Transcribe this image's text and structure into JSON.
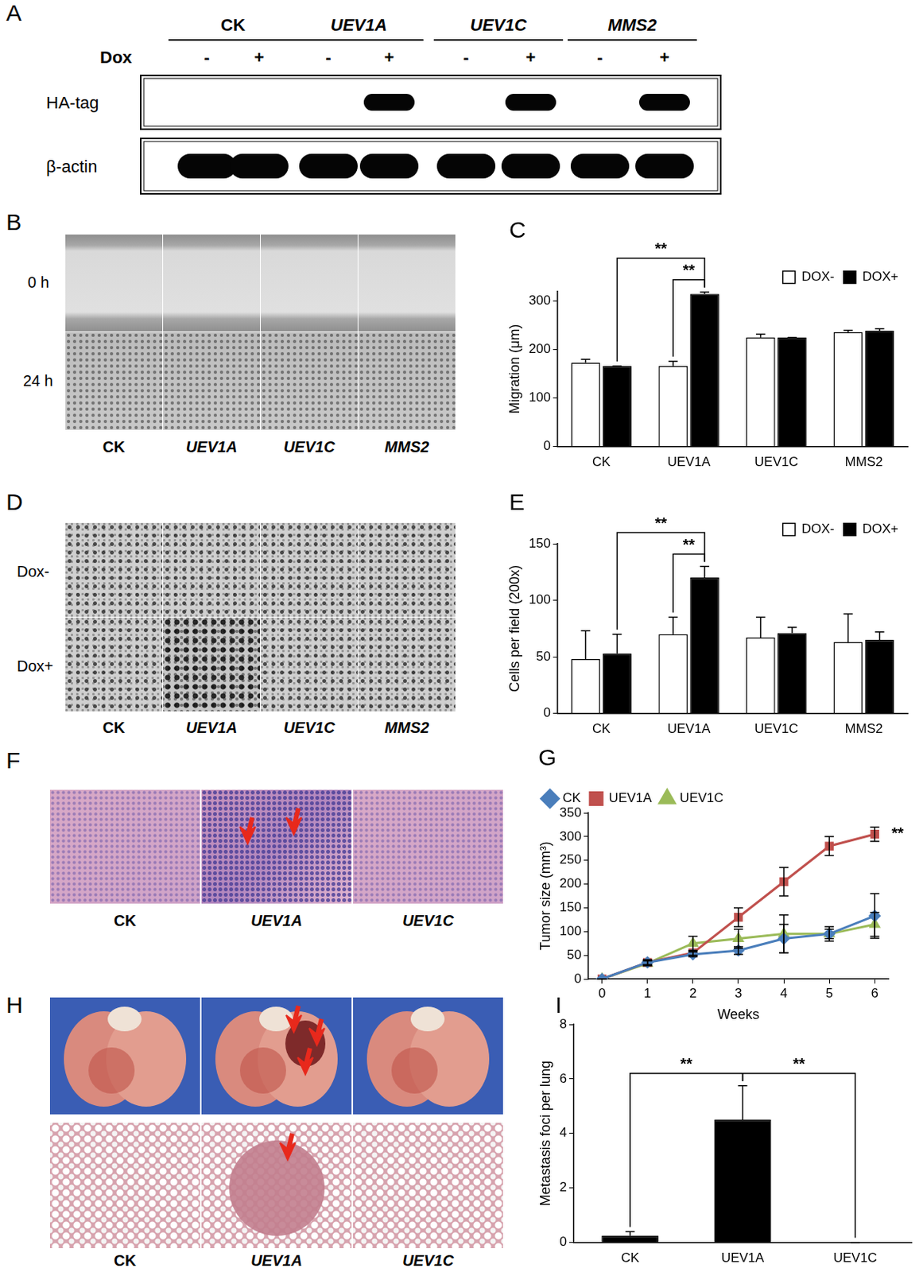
{
  "figure": {
    "A": {
      "panel_label": "A",
      "groups": [
        "CK",
        "UEV1A",
        "UEV1C",
        "MMS2"
      ],
      "treatment_label": "Dox",
      "lanes": [
        "-",
        "+",
        "-",
        "+",
        "-",
        "+",
        "-",
        "+"
      ],
      "blots": [
        {
          "label": "HA-tag",
          "bands": [
            false,
            false,
            false,
            true,
            false,
            true,
            false,
            true
          ]
        },
        {
          "label": "β-actin",
          "bands": [
            true,
            true,
            true,
            true,
            true,
            true,
            true,
            true
          ]
        }
      ]
    },
    "B": {
      "panel_label": "B",
      "rows": [
        "0 h",
        "24 h"
      ],
      "columns": [
        "CK",
        "UEV1A",
        "UEV1C",
        "MMS2"
      ]
    },
    "D": {
      "panel_label": "D",
      "rows": [
        "Dox-",
        "Dox+"
      ],
      "columns": [
        "CK",
        "UEV1A",
        "UEV1C",
        "MMS2"
      ]
    },
    "F": {
      "panel_label": "F",
      "columns": [
        "CK",
        "UEV1A",
        "UEV1C"
      ]
    },
    "H": {
      "panel_label": "H",
      "columns": [
        "CK",
        "UEV1A",
        "UEV1C"
      ]
    }
  },
  "chart_data": [
    {
      "panel_label": "C",
      "type": "bar",
      "categories": [
        "CK",
        "UEV1A",
        "UEV1C",
        "MMS2"
      ],
      "y_label": "Migration (μm)",
      "ylim": [
        0,
        320
      ],
      "yticks": [
        0,
        100,
        200,
        300
      ],
      "grid": false,
      "legend": "upper right",
      "series": [
        {
          "name": "DOX-",
          "color": "#ffffff",
          "values": [
            173,
            166,
            225,
            236
          ],
          "errors": [
            7,
            10,
            7,
            4
          ]
        },
        {
          "name": "DOX+",
          "color": "#000000",
          "values": [
            166,
            315,
            225,
            239
          ],
          "errors": [
            0,
            4,
            0,
            4
          ]
        }
      ],
      "annotations": [
        {
          "text": "**",
          "from": {
            "category": "UEV1A",
            "series": "DOX-"
          },
          "to": {
            "category": "UEV1A",
            "series": "DOX+"
          }
        },
        {
          "text": "**",
          "from": {
            "category": "CK",
            "series": "DOX+"
          },
          "to": {
            "category": "UEV1A",
            "series": "DOX+"
          }
        }
      ]
    },
    {
      "panel_label": "E",
      "type": "bar",
      "categories": [
        "CK",
        "UEV1A",
        "UEV1C",
        "MMS2"
      ],
      "y_label": "Cells per field (200x)",
      "ylim": [
        0,
        150
      ],
      "yticks": [
        0,
        50,
        100,
        150
      ],
      "grid": false,
      "legend": "upper right",
      "series": [
        {
          "name": "DOX-",
          "color": "#ffffff",
          "values": [
            48,
            70,
            67,
            63
          ],
          "errors": [
            25,
            15,
            18,
            25
          ]
        },
        {
          "name": "DOX+",
          "color": "#000000",
          "values": [
            53,
            120,
            71,
            65
          ],
          "errors": [
            17,
            10,
            5,
            7
          ]
        }
      ],
      "annotations": [
        {
          "text": "**",
          "from": {
            "category": "UEV1A",
            "series": "DOX-"
          },
          "to": {
            "category": "UEV1A",
            "series": "DOX+"
          }
        },
        {
          "text": "**",
          "from": {
            "category": "CK",
            "series": "DOX+"
          },
          "to": {
            "category": "UEV1A",
            "series": "DOX+"
          }
        }
      ]
    },
    {
      "panel_label": "G",
      "type": "line",
      "x": [
        0,
        1,
        2,
        3,
        4,
        5,
        6
      ],
      "x_label": "Weeks",
      "y_label": "Tumor size (mm³)",
      "xlim": [
        -0.3,
        6.3
      ],
      "xticks": [
        0,
        1,
        2,
        3,
        4,
        5,
        6
      ],
      "ylim": [
        0,
        350
      ],
      "yticks": [
        0,
        50,
        100,
        150,
        200,
        250,
        300,
        350
      ],
      "grid": false,
      "legend": "upper left",
      "series": [
        {
          "name": "CK",
          "color": "#4a7ebb",
          "marker": "diamond",
          "values": [
            0,
            35,
            52,
            60,
            85,
            95,
            133
          ],
          "errors": [
            0,
            5,
            5,
            8,
            30,
            10,
            47
          ]
        },
        {
          "name": "UEV1A",
          "color": "#c0504d",
          "marker": "square",
          "values": [
            0,
            35,
            55,
            130,
            205,
            280,
            305
          ],
          "errors": [
            0,
            5,
            5,
            20,
            30,
            20,
            15
          ]
        },
        {
          "name": "UEV1C",
          "color": "#9bbb59",
          "marker": "triangle",
          "values": [
            0,
            33,
            75,
            85,
            95,
            95,
            115
          ],
          "errors": [
            0,
            5,
            15,
            20,
            40,
            15,
            25
          ]
        }
      ],
      "annotations": [
        {
          "text": "**",
          "series": "UEV1A",
          "x": 6
        }
      ]
    },
    {
      "panel_label": "I",
      "type": "bar",
      "categories": [
        "CK",
        "UEV1A",
        "UEV1C"
      ],
      "values": [
        0.25,
        4.5,
        0
      ],
      "errors": [
        0.15,
        1.25,
        0
      ],
      "color": "#000000",
      "y_label": "Metastasis foci per lung",
      "ylim": [
        0,
        8
      ],
      "yticks": [
        0,
        2,
        4,
        6,
        8
      ],
      "grid": false,
      "annotations": [
        {
          "text": "**",
          "from": {
            "category": "CK"
          },
          "to": {
            "category": "UEV1A"
          }
        },
        {
          "text": "**",
          "from": {
            "category": "UEV1A"
          },
          "to": {
            "category": "UEV1C"
          }
        }
      ]
    }
  ]
}
